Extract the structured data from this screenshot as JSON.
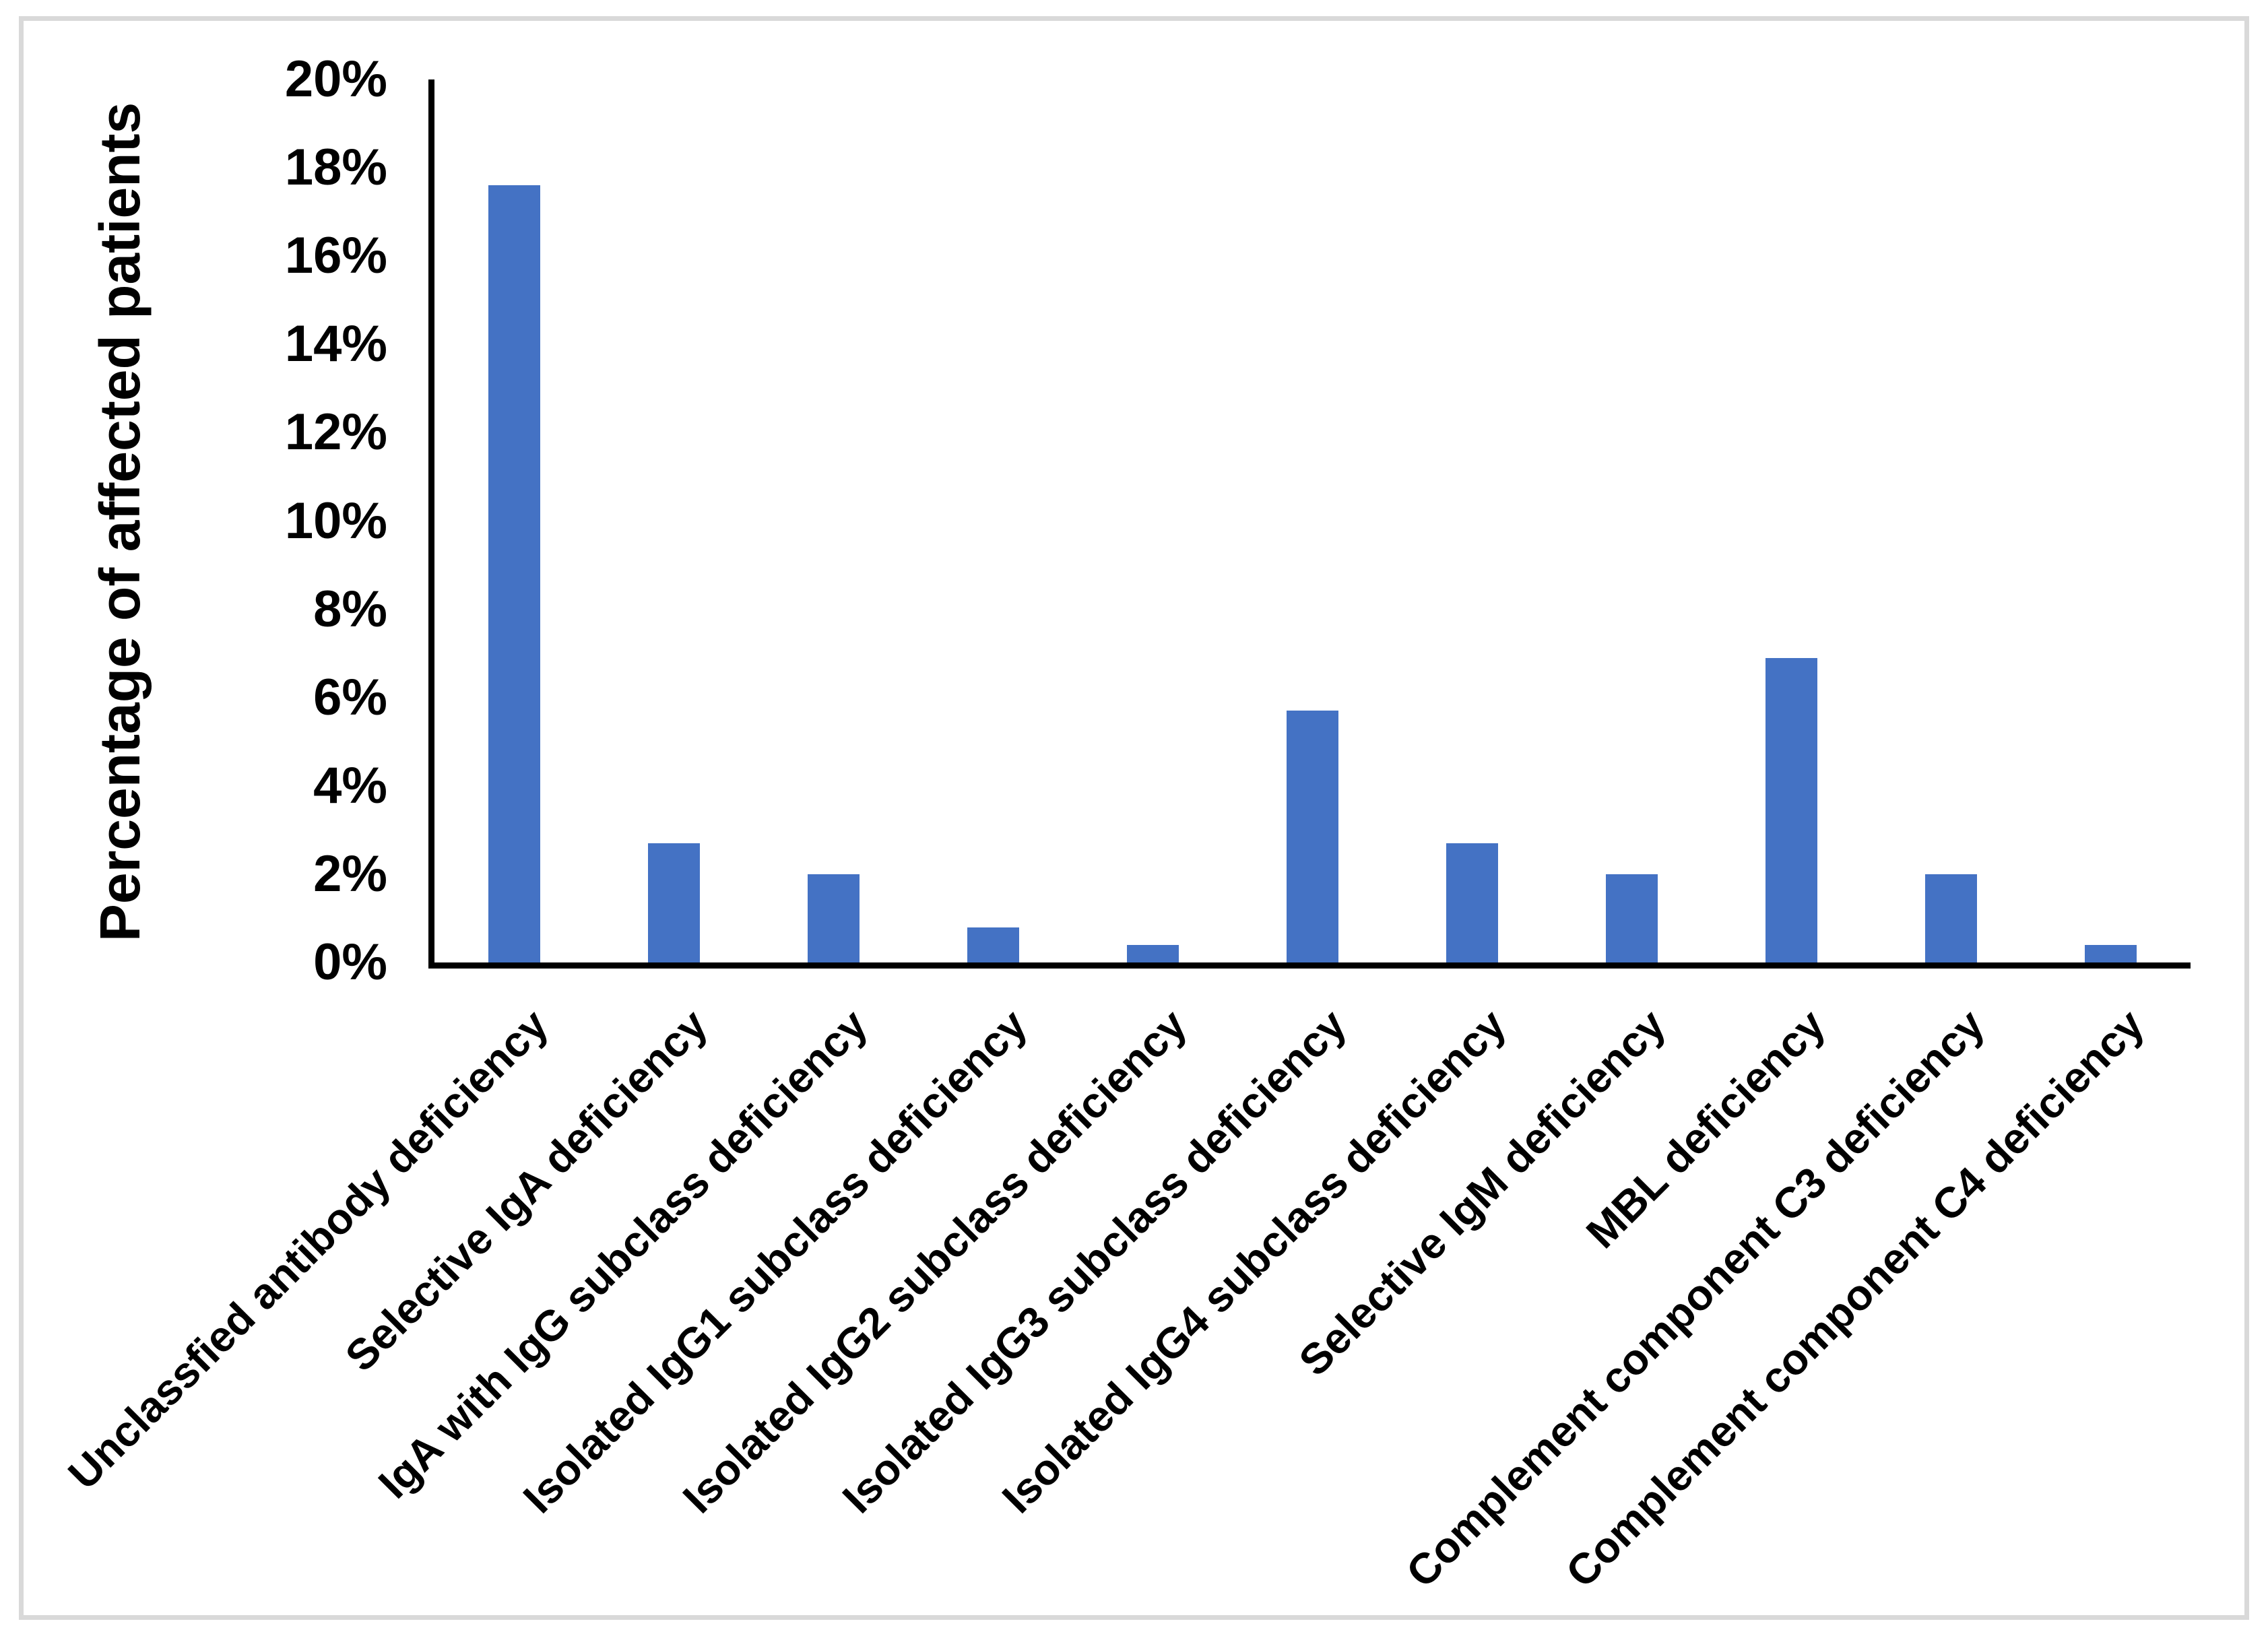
{
  "figure": {
    "background_color": "#ffffff",
    "border_color": "#d9d9d9"
  },
  "chart_data": {
    "type": "bar",
    "title": "",
    "xlabel": "",
    "ylabel": "Percentage of affected patients",
    "categories": [
      "Unclassfied antibody deficiency",
      "Selective IgA deficiency",
      "IgA with IgG subclass deficiency",
      "Isolated IgG1 subclass deficiency",
      "Isolated IgG2 subclass deficiency",
      "Isolated IgG3 subclass deficiency",
      "Isolated IgG4 subclass deficiency",
      "Selective IgM deficiency",
      "MBL deficiency",
      "Complement component C3 deficiency",
      "Complement component C4 deficiency"
    ],
    "values": [
      17.6,
      2.7,
      2.0,
      0.8,
      0.4,
      5.7,
      2.7,
      2.0,
      6.9,
      2.0,
      0.4
    ],
    "value_unit": "%",
    "ylim": [
      0,
      20
    ],
    "ytick_step": 2,
    "ytick_labels": [
      "0%",
      "2%",
      "4%",
      "6%",
      "8%",
      "10%",
      "12%",
      "14%",
      "16%",
      "18%",
      "20%"
    ],
    "x_label_rotation_deg": 45,
    "grid": false,
    "legend_position": "none",
    "bar_color": "#4472c4",
    "axis_color": "#000000",
    "text_color": "#000000"
  }
}
